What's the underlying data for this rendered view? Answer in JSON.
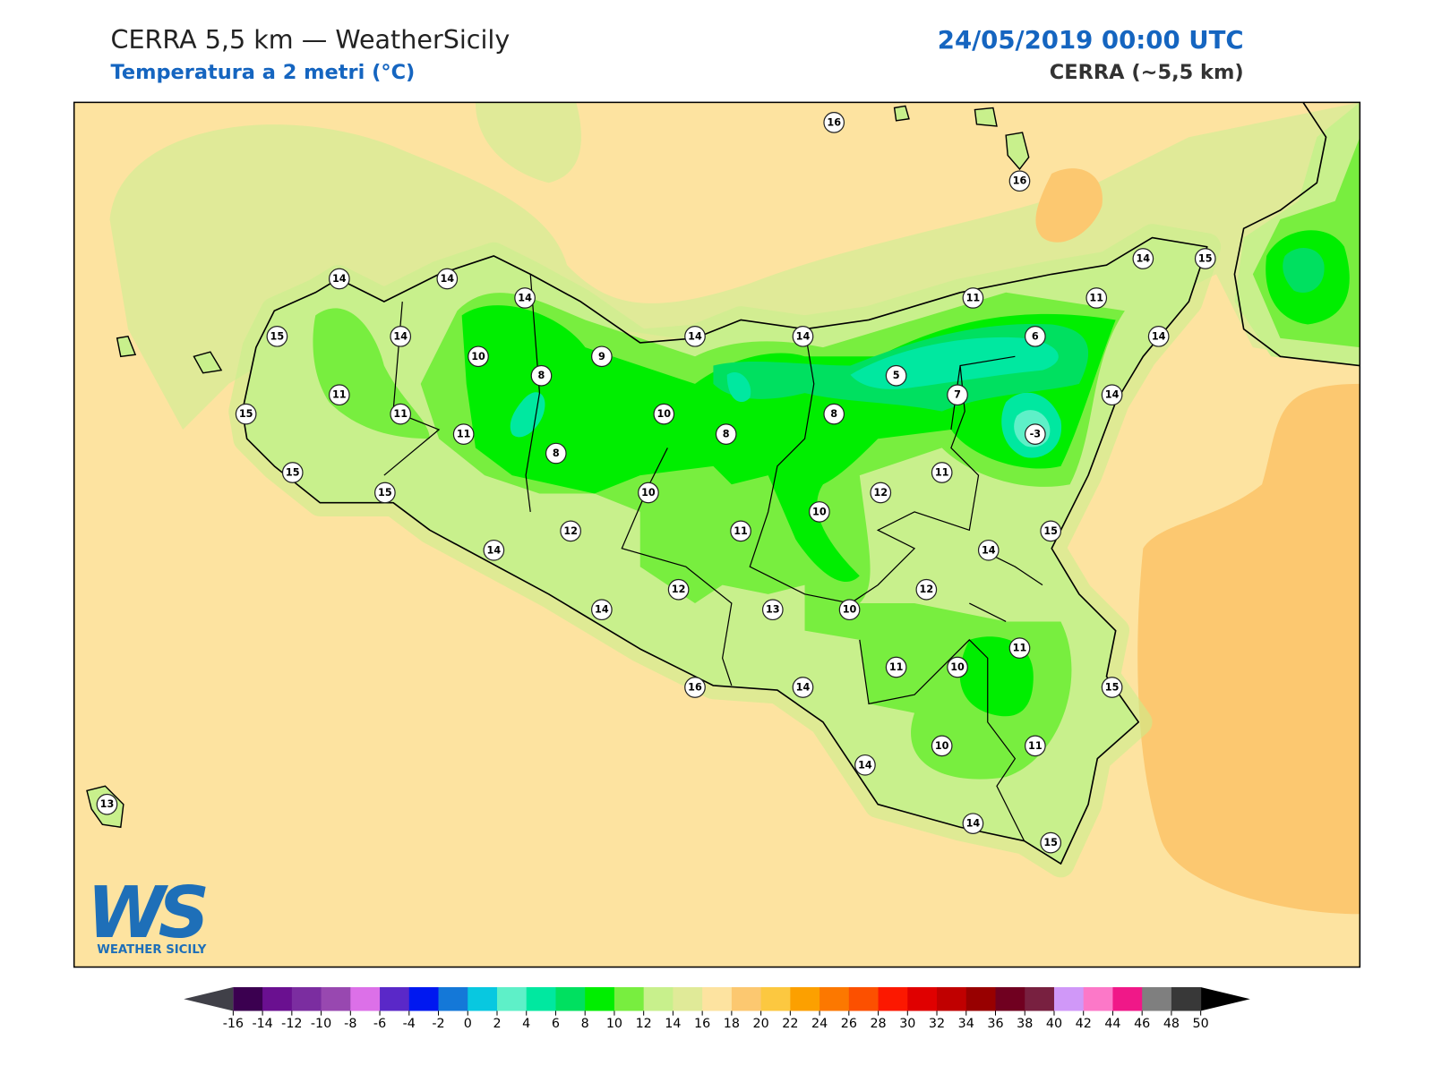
{
  "header": {
    "title": "CERRA 5,5 km — WeatherSicily",
    "subtitle": "Temperatura a 2 metri (°C)",
    "datetime": "24/05/2019 00:00 UTC",
    "model": "CERRA (~5,5 km)"
  },
  "stations": [
    16,
    16,
    14,
    14,
    14,
    14,
    15,
    11,
    11,
    15,
    14,
    14,
    14,
    6,
    14,
    10,
    9,
    8,
    5,
    11,
    7,
    14,
    15,
    11,
    10,
    8,
    11,
    8,
    -3,
    8,
    15,
    11,
    15,
    10,
    12,
    10,
    12,
    11,
    15,
    14,
    14,
    12,
    12,
    14,
    13,
    10,
    11,
    11,
    10,
    16,
    14,
    15,
    10,
    11,
    14,
    13,
    14,
    15
  ],
  "colorbar": {
    "ticks": [
      -16,
      -14,
      -12,
      -10,
      -8,
      -6,
      -4,
      -2,
      0,
      2,
      4,
      6,
      8,
      10,
      12,
      14,
      16,
      18,
      20,
      22,
      24,
      26,
      28,
      30,
      32,
      34,
      36,
      38,
      40,
      42,
      44,
      46,
      48,
      50
    ],
    "colors": [
      "#3b0050",
      "#6a1090",
      "#7b2da0",
      "#9848b0",
      "#dc70e8",
      "#5a28c8",
      "#0018f0",
      "#1478d8",
      "#08c8e0",
      "#5ef0c8",
      "#00e8a0",
      "#00e060",
      "#00ee00",
      "#78ee3f",
      "#c8f08c",
      "#e0ea98",
      "#fde3a0",
      "#fcc870",
      "#fcc840",
      "#fca000",
      "#fc7800",
      "#fc5000",
      "#fc1800",
      "#e00000",
      "#c00000",
      "#980000",
      "#700020",
      "#782040",
      "#d098f8",
      "#fc78c8",
      "#f01888",
      "#7f7f7f",
      "#383838"
    ],
    "under": "#404048",
    "over": "#000000"
  },
  "logo": {
    "mark": "WS",
    "name": "WEATHER SICILY"
  }
}
